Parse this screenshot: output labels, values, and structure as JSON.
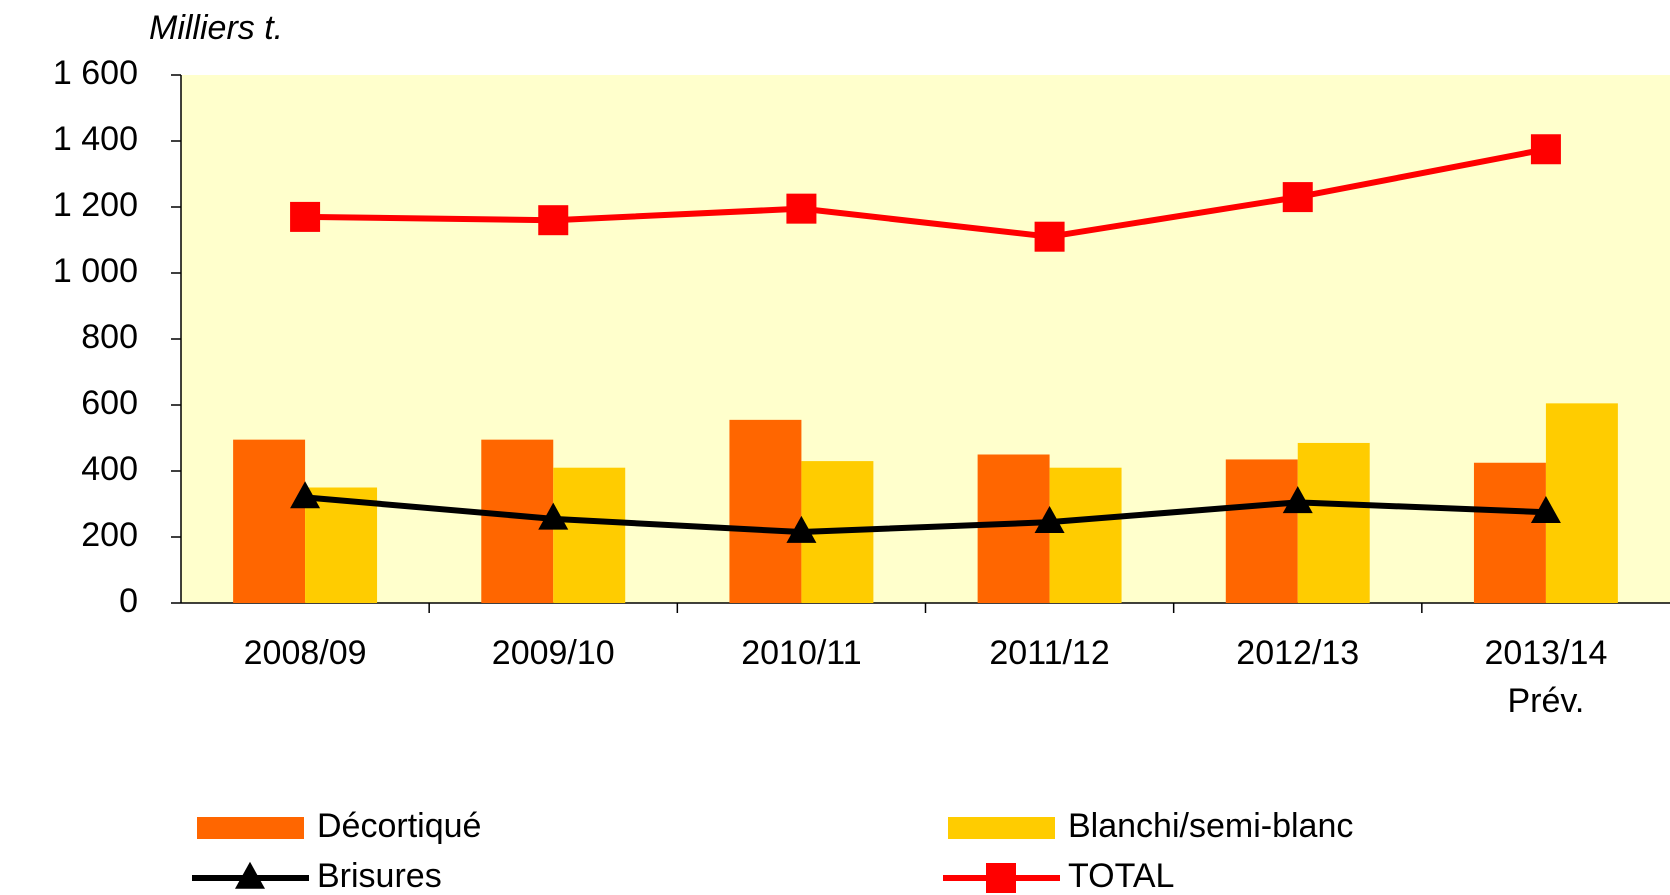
{
  "chart_data": {
    "type": "bar-line",
    "y_label": "Milliers t.",
    "categories": [
      "2008/09",
      "2009/10",
      "2010/11",
      "2011/12",
      "2012/13",
      "2013/14\nPrév."
    ],
    "series": [
      {
        "name": "Décortiqué",
        "type": "bar",
        "color": "#ff6600",
        "values": [
          495,
          495,
          555,
          450,
          435,
          425
        ]
      },
      {
        "name": "Blanchi/semi-blanc",
        "type": "bar",
        "color": "#ffcc00",
        "values": [
          350,
          410,
          430,
          410,
          485,
          605
        ]
      },
      {
        "name": "Brisures",
        "type": "line",
        "marker": "triangle",
        "color": "#000000",
        "values": [
          320,
          255,
          215,
          245,
          305,
          275
        ]
      },
      {
        "name": "TOTAL",
        "type": "line",
        "marker": "square",
        "color": "#ff0000",
        "values": [
          1170,
          1160,
          1195,
          1110,
          1230,
          1375
        ]
      }
    ],
    "ylim": [
      0,
      1600
    ],
    "yticks": [
      0,
      200,
      400,
      600,
      800,
      {
        "value": 1000,
        "label": "1 000"
      },
      {
        "value": 1200,
        "label": "1 200"
      },
      {
        "value": 1400,
        "label": "1 400"
      },
      {
        "value": 1600,
        "label": "1 600"
      }
    ],
    "plot_background": "#ffffcc",
    "grid": false
  }
}
